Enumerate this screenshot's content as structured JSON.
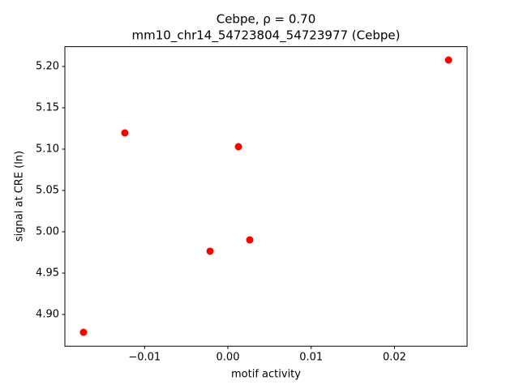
{
  "chart_data": {
    "type": "scatter",
    "title": "Cebpe, ρ = 0.70",
    "subtitle": "mm10_chr14_54723804_54723977 (Cebpe)",
    "x_label": "motif activity",
    "y_label": "signal at CRE (ln)",
    "color": "#ff0000",
    "x": [
      -0.01733,
      -0.01237,
      -0.00214,
      0.00127,
      0.00263,
      0.02649
    ],
    "values": [
      4.8784,
      5.1196,
      4.9765,
      5.1029,
      4.9902,
      5.2078
    ],
    "xlim": [
      -0.01957,
      0.02872
    ],
    "ylim": [
      4.8616,
      5.2239
    ],
    "xticks": [
      {
        "value": -0.01,
        "label": "−0.01"
      },
      {
        "value": 0,
        "label": "0.00"
      },
      0.01,
      0.02
    ],
    "yticks": [
      {
        "value": 4.9,
        "label": "4.90"
      },
      4.95,
      {
        "value": 5.0,
        "label": "5.00"
      },
      5.05,
      {
        "value": 5.1,
        "label": "5.10"
      },
      5.15,
      {
        "value": 5.2,
        "label": "5.20"
      }
    ],
    "grid": false
  }
}
